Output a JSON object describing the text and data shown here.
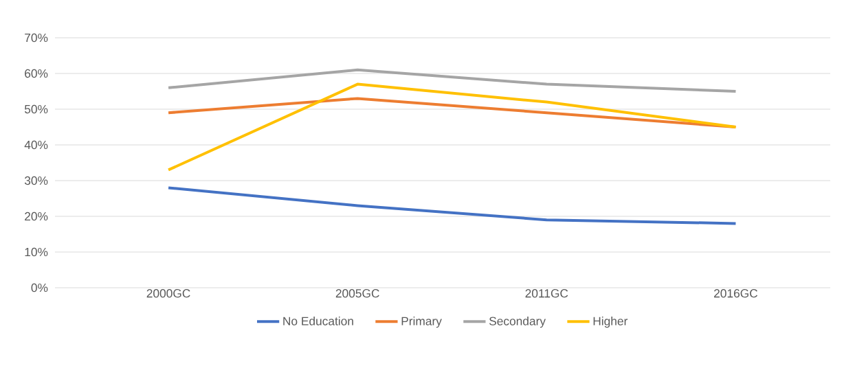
{
  "chart_data": {
    "type": "line",
    "categories": [
      "2000GC",
      "2005GC",
      "2011GC",
      "2016GC"
    ],
    "series": [
      {
        "name": "No Education",
        "color": "#4472c4",
        "values": [
          28,
          23,
          19,
          18
        ]
      },
      {
        "name": "Primary",
        "color": "#ed7d31",
        "values": [
          49,
          53,
          49,
          45
        ]
      },
      {
        "name": "Secondary",
        "color": "#a5a5a5",
        "values": [
          56,
          61,
          57,
          55
        ]
      },
      {
        "name": "Higher",
        "color": "#ffc000",
        "values": [
          33,
          57,
          52,
          45
        ]
      }
    ],
    "ylim": [
      0,
      70
    ],
    "yticks": [
      {
        "value": 0,
        "label": "0%"
      },
      {
        "value": 10,
        "label": "10%"
      },
      {
        "value": 20,
        "label": "20%"
      },
      {
        "value": 30,
        "label": "30%"
      },
      {
        "value": 40,
        "label": "40%"
      },
      {
        "value": 50,
        "label": "50%"
      },
      {
        "value": 60,
        "label": "60%"
      },
      {
        "value": 70,
        "label": "70%"
      }
    ],
    "grid": "y",
    "legend": "bottom",
    "marker": "none",
    "line_style": "solid"
  }
}
